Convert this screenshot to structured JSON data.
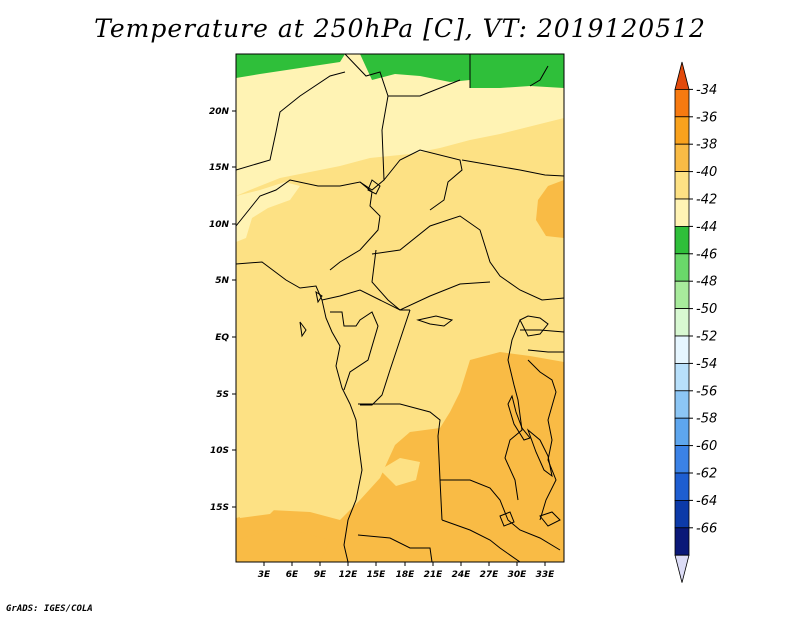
{
  "title": "Temperature at 250hPa [C], VT: 2019120512",
  "footer": "GrADS: IGES/COLA",
  "map": {
    "lat_labels": [
      "20N",
      "15N",
      "10N",
      "5N",
      "EQ",
      "5S",
      "10S",
      "15S"
    ],
    "lon_labels": [
      "3E",
      "6E",
      "9E",
      "12E",
      "15E",
      "18E",
      "21E",
      "24E",
      "27E",
      "30E",
      "33E"
    ],
    "colors": {
      "c_minus44": "#2fbf3a",
      "c_minus42": "#fff3b4",
      "c_minus40": "#fde184",
      "c_minus38": "#f9bb45"
    }
  },
  "colorbar": {
    "labels": [
      "-34",
      "-36",
      "-38",
      "-40",
      "-42",
      "-44",
      "-46",
      "-48",
      "-50",
      "-52",
      "-54",
      "-56",
      "-58",
      "-60",
      "-62",
      "-64",
      "-66"
    ],
    "colors": [
      "#e24a0c",
      "#f77a10",
      "#f9a21d",
      "#f9bb45",
      "#fde184",
      "#fff3b4",
      "#2fbf3a",
      "#6ad86a",
      "#a8eb9c",
      "#d8f8d2",
      "#e6f6ff",
      "#b8e0fb",
      "#8cc6f5",
      "#5ea6ee",
      "#3b82e6",
      "#1e5ed1",
      "#0c3aa8",
      "#0a1878",
      "#dcdcf6"
    ]
  }
}
